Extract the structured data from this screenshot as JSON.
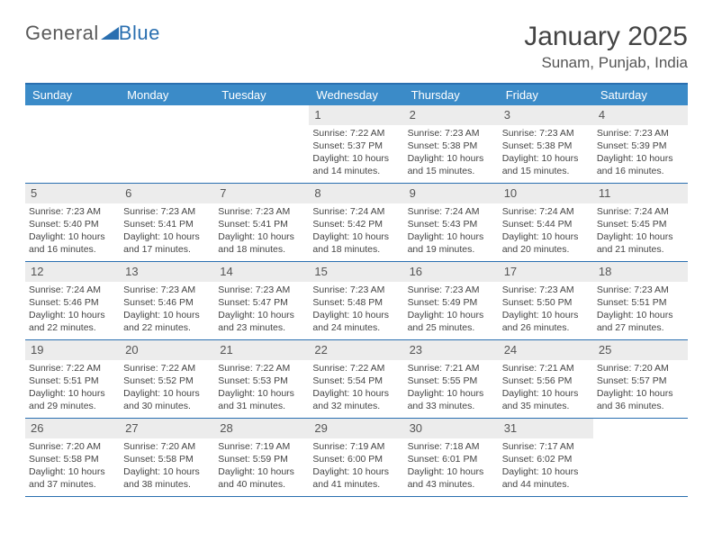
{
  "logo": {
    "word1": "General",
    "word2": "Blue"
  },
  "title": "January 2025",
  "location": "Sunam, Punjab, India",
  "colors": {
    "header_bg": "#3b8bc8",
    "border": "#2a6fb0",
    "daynum_bg": "#ececec",
    "text": "#444444",
    "logo_gray": "#5a5a5a",
    "logo_blue": "#2a6fb0"
  },
  "day_headers": [
    "Sunday",
    "Monday",
    "Tuesday",
    "Wednesday",
    "Thursday",
    "Friday",
    "Saturday"
  ],
  "weeks": [
    [
      null,
      null,
      null,
      {
        "n": "1",
        "sr": "Sunrise: 7:22 AM",
        "ss": "Sunset: 5:37 PM",
        "d1": "Daylight: 10 hours",
        "d2": "and 14 minutes."
      },
      {
        "n": "2",
        "sr": "Sunrise: 7:23 AM",
        "ss": "Sunset: 5:38 PM",
        "d1": "Daylight: 10 hours",
        "d2": "and 15 minutes."
      },
      {
        "n": "3",
        "sr": "Sunrise: 7:23 AM",
        "ss": "Sunset: 5:38 PM",
        "d1": "Daylight: 10 hours",
        "d2": "and 15 minutes."
      },
      {
        "n": "4",
        "sr": "Sunrise: 7:23 AM",
        "ss": "Sunset: 5:39 PM",
        "d1": "Daylight: 10 hours",
        "d2": "and 16 minutes."
      }
    ],
    [
      {
        "n": "5",
        "sr": "Sunrise: 7:23 AM",
        "ss": "Sunset: 5:40 PM",
        "d1": "Daylight: 10 hours",
        "d2": "and 16 minutes."
      },
      {
        "n": "6",
        "sr": "Sunrise: 7:23 AM",
        "ss": "Sunset: 5:41 PM",
        "d1": "Daylight: 10 hours",
        "d2": "and 17 minutes."
      },
      {
        "n": "7",
        "sr": "Sunrise: 7:23 AM",
        "ss": "Sunset: 5:41 PM",
        "d1": "Daylight: 10 hours",
        "d2": "and 18 minutes."
      },
      {
        "n": "8",
        "sr": "Sunrise: 7:24 AM",
        "ss": "Sunset: 5:42 PM",
        "d1": "Daylight: 10 hours",
        "d2": "and 18 minutes."
      },
      {
        "n": "9",
        "sr": "Sunrise: 7:24 AM",
        "ss": "Sunset: 5:43 PM",
        "d1": "Daylight: 10 hours",
        "d2": "and 19 minutes."
      },
      {
        "n": "10",
        "sr": "Sunrise: 7:24 AM",
        "ss": "Sunset: 5:44 PM",
        "d1": "Daylight: 10 hours",
        "d2": "and 20 minutes."
      },
      {
        "n": "11",
        "sr": "Sunrise: 7:24 AM",
        "ss": "Sunset: 5:45 PM",
        "d1": "Daylight: 10 hours",
        "d2": "and 21 minutes."
      }
    ],
    [
      {
        "n": "12",
        "sr": "Sunrise: 7:24 AM",
        "ss": "Sunset: 5:46 PM",
        "d1": "Daylight: 10 hours",
        "d2": "and 22 minutes."
      },
      {
        "n": "13",
        "sr": "Sunrise: 7:23 AM",
        "ss": "Sunset: 5:46 PM",
        "d1": "Daylight: 10 hours",
        "d2": "and 22 minutes."
      },
      {
        "n": "14",
        "sr": "Sunrise: 7:23 AM",
        "ss": "Sunset: 5:47 PM",
        "d1": "Daylight: 10 hours",
        "d2": "and 23 minutes."
      },
      {
        "n": "15",
        "sr": "Sunrise: 7:23 AM",
        "ss": "Sunset: 5:48 PM",
        "d1": "Daylight: 10 hours",
        "d2": "and 24 minutes."
      },
      {
        "n": "16",
        "sr": "Sunrise: 7:23 AM",
        "ss": "Sunset: 5:49 PM",
        "d1": "Daylight: 10 hours",
        "d2": "and 25 minutes."
      },
      {
        "n": "17",
        "sr": "Sunrise: 7:23 AM",
        "ss": "Sunset: 5:50 PM",
        "d1": "Daylight: 10 hours",
        "d2": "and 26 minutes."
      },
      {
        "n": "18",
        "sr": "Sunrise: 7:23 AM",
        "ss": "Sunset: 5:51 PM",
        "d1": "Daylight: 10 hours",
        "d2": "and 27 minutes."
      }
    ],
    [
      {
        "n": "19",
        "sr": "Sunrise: 7:22 AM",
        "ss": "Sunset: 5:51 PM",
        "d1": "Daylight: 10 hours",
        "d2": "and 29 minutes."
      },
      {
        "n": "20",
        "sr": "Sunrise: 7:22 AM",
        "ss": "Sunset: 5:52 PM",
        "d1": "Daylight: 10 hours",
        "d2": "and 30 minutes."
      },
      {
        "n": "21",
        "sr": "Sunrise: 7:22 AM",
        "ss": "Sunset: 5:53 PM",
        "d1": "Daylight: 10 hours",
        "d2": "and 31 minutes."
      },
      {
        "n": "22",
        "sr": "Sunrise: 7:22 AM",
        "ss": "Sunset: 5:54 PM",
        "d1": "Daylight: 10 hours",
        "d2": "and 32 minutes."
      },
      {
        "n": "23",
        "sr": "Sunrise: 7:21 AM",
        "ss": "Sunset: 5:55 PM",
        "d1": "Daylight: 10 hours",
        "d2": "and 33 minutes."
      },
      {
        "n": "24",
        "sr": "Sunrise: 7:21 AM",
        "ss": "Sunset: 5:56 PM",
        "d1": "Daylight: 10 hours",
        "d2": "and 35 minutes."
      },
      {
        "n": "25",
        "sr": "Sunrise: 7:20 AM",
        "ss": "Sunset: 5:57 PM",
        "d1": "Daylight: 10 hours",
        "d2": "and 36 minutes."
      }
    ],
    [
      {
        "n": "26",
        "sr": "Sunrise: 7:20 AM",
        "ss": "Sunset: 5:58 PM",
        "d1": "Daylight: 10 hours",
        "d2": "and 37 minutes."
      },
      {
        "n": "27",
        "sr": "Sunrise: 7:20 AM",
        "ss": "Sunset: 5:58 PM",
        "d1": "Daylight: 10 hours",
        "d2": "and 38 minutes."
      },
      {
        "n": "28",
        "sr": "Sunrise: 7:19 AM",
        "ss": "Sunset: 5:59 PM",
        "d1": "Daylight: 10 hours",
        "d2": "and 40 minutes."
      },
      {
        "n": "29",
        "sr": "Sunrise: 7:19 AM",
        "ss": "Sunset: 6:00 PM",
        "d1": "Daylight: 10 hours",
        "d2": "and 41 minutes."
      },
      {
        "n": "30",
        "sr": "Sunrise: 7:18 AM",
        "ss": "Sunset: 6:01 PM",
        "d1": "Daylight: 10 hours",
        "d2": "and 43 minutes."
      },
      {
        "n": "31",
        "sr": "Sunrise: 7:17 AM",
        "ss": "Sunset: 6:02 PM",
        "d1": "Daylight: 10 hours",
        "d2": "and 44 minutes."
      },
      null
    ]
  ]
}
